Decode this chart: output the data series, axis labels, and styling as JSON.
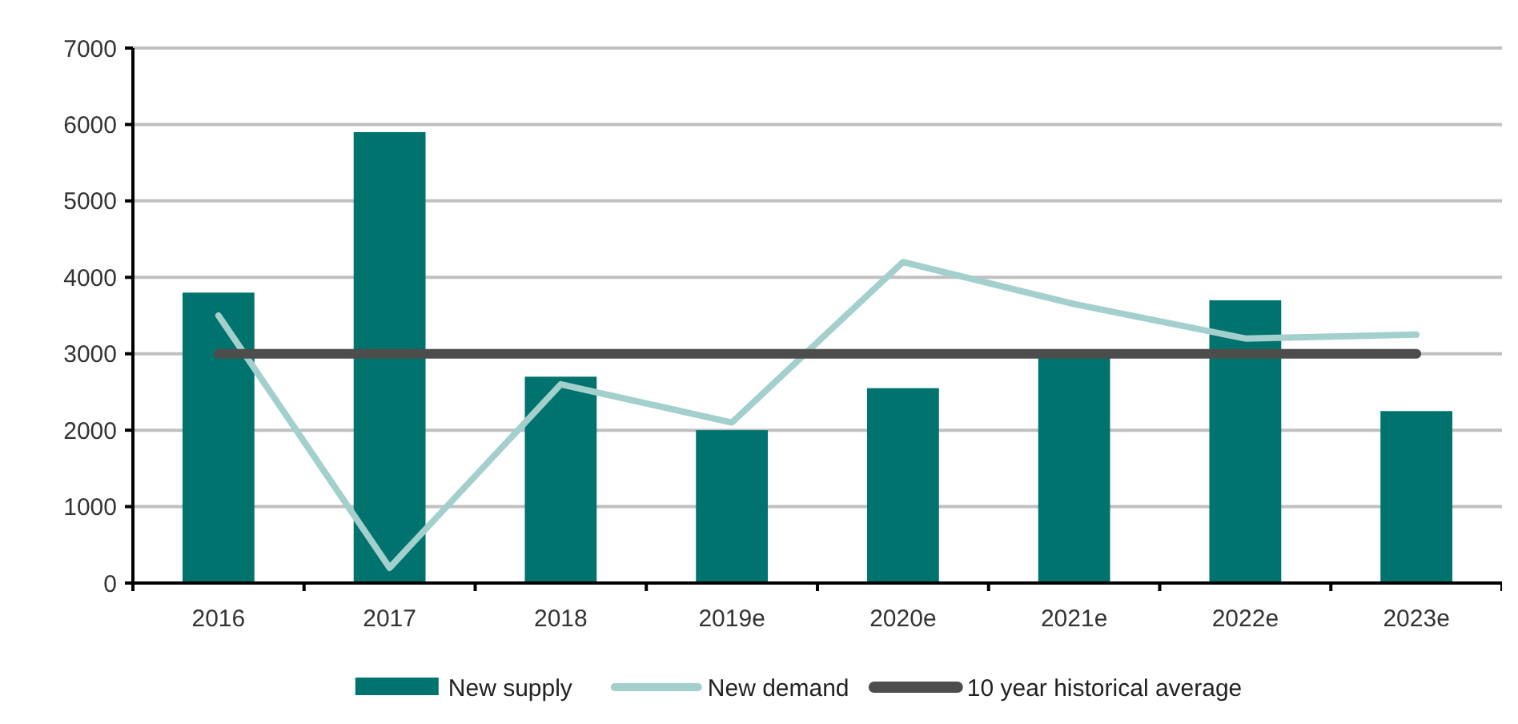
{
  "chart_data": {
    "type": "bar",
    "categories": [
      "2016",
      "2017",
      "2018",
      "2019e",
      "2020e",
      "2021e",
      "2022e",
      "2023e"
    ],
    "series": [
      {
        "name": "New supply",
        "color": "#00736f",
        "values": [
          3800,
          5900,
          2700,
          2000,
          2550,
          3000,
          3700,
          2250
        ]
      },
      {
        "name": "New demand",
        "type": "line",
        "color": "#a3cfcc",
        "values": [
          3500,
          200,
          2600,
          2100,
          4200,
          3650,
          3200,
          3250
        ]
      },
      {
        "name": "10 year historical average",
        "type": "line",
        "color": "#4d4d4d",
        "values": [
          3000,
          3000,
          3000,
          3000,
          3000,
          3000,
          3000,
          3000
        ]
      }
    ],
    "ylim": [
      0,
      7000
    ],
    "yticks": [
      0,
      1000,
      2000,
      3000,
      4000,
      5000,
      6000,
      7000
    ],
    "grid": "y",
    "legend": "bottom"
  }
}
